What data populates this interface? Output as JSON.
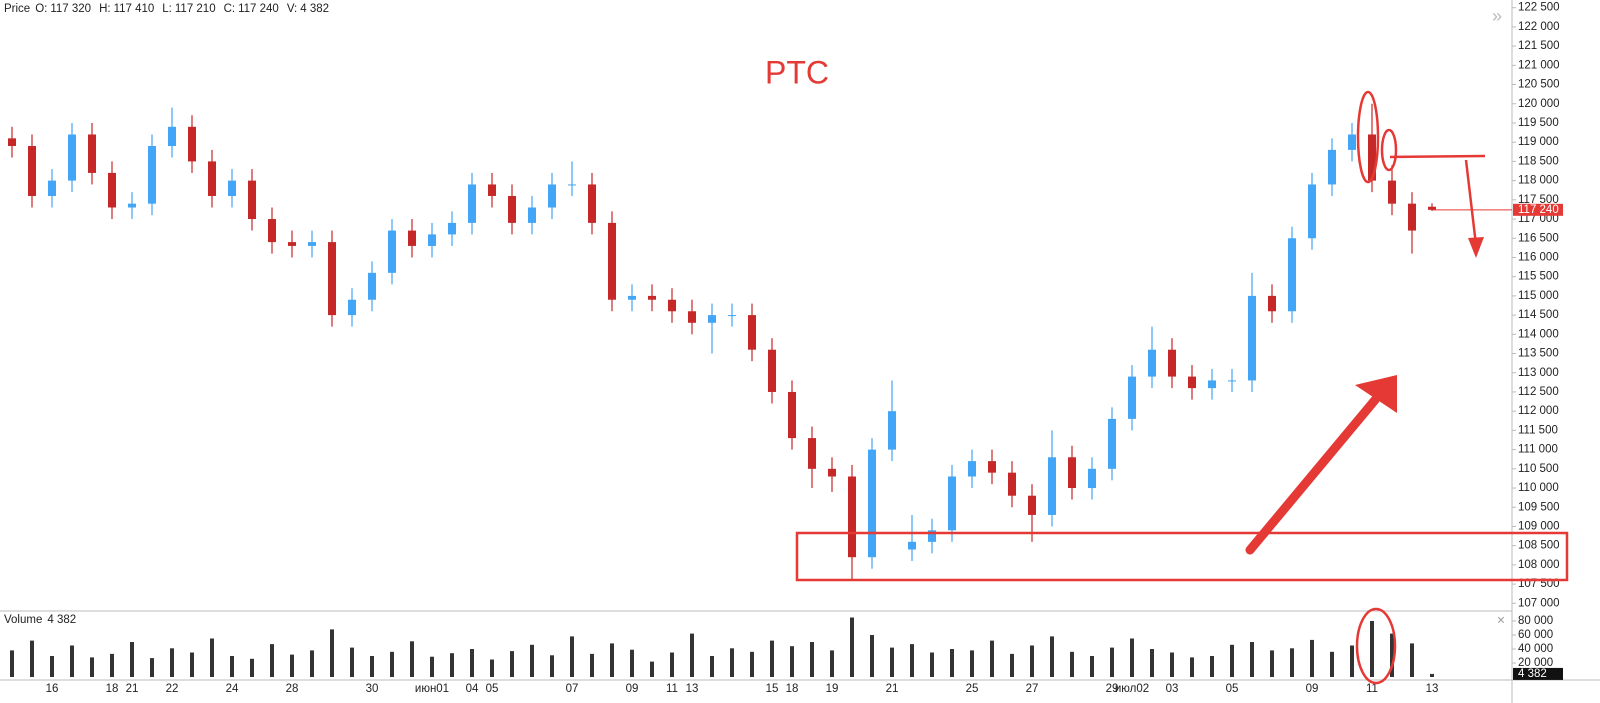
{
  "chart_data": {
    "type": "candlestick",
    "title": "PTC",
    "header": {
      "name": "Price",
      "items": [
        {
          "label": "O:",
          "value": {
            "value": 117320,
            "label": "117 320"
          }
        },
        {
          "label": "H:",
          "value": {
            "value": 117410,
            "label": "117 410"
          }
        },
        {
          "label": "L:",
          "value": {
            "value": 117210,
            "label": "117 210"
          }
        },
        {
          "label": "C:",
          "value": {
            "value": 117240,
            "label": "117 240"
          }
        },
        {
          "label": "V:",
          "value": {
            "value": 4382,
            "label": "4 382"
          }
        }
      ]
    },
    "categories": [
      null,
      null,
      "16",
      null,
      null,
      "18",
      "21",
      null,
      "22",
      null,
      null,
      "24",
      null,
      null,
      "28",
      null,
      null,
      null,
      "30",
      null,
      null,
      "июн01",
      null,
      "04",
      "05",
      null,
      null,
      null,
      "07",
      null,
      null,
      "09",
      null,
      "11",
      "13",
      null,
      null,
      null,
      "15",
      "18",
      null,
      "19",
      null,
      null,
      "21",
      null,
      null,
      null,
      "25",
      null,
      null,
      "27",
      null,
      null,
      null,
      "29",
      "июл02",
      null,
      "03",
      null,
      null,
      "05",
      null,
      null,
      null,
      "09",
      null,
      null,
      "11",
      null,
      null,
      "13"
    ],
    "series": {
      "open": [
        119100,
        118900,
        117600,
        118000,
        119200,
        118200,
        117300,
        117400,
        118900,
        119400,
        118500,
        117600,
        118000,
        117000,
        116400,
        116300,
        116400,
        114500,
        114900,
        115600,
        116700,
        116300,
        116600,
        116900,
        117900,
        117600,
        116900,
        117300,
        117900,
        117900,
        116900,
        114900,
        115000,
        114900,
        114600,
        114300,
        114500,
        114500,
        113600,
        112500,
        111300,
        110500,
        110300,
        108200,
        111000,
        108400,
        108600,
        108900,
        110300,
        110700,
        110400,
        109800,
        109300,
        110800,
        110000,
        110500,
        111800,
        112900,
        113600,
        112900,
        112600,
        112800,
        112800,
        115000,
        114600,
        116500,
        117900,
        118800,
        119200,
        118000,
        117400,
        117320
      ],
      "high": [
        119400,
        119200,
        118300,
        119500,
        119500,
        118500,
        117700,
        119200,
        119900,
        119700,
        118800,
        118300,
        118300,
        117300,
        116700,
        116700,
        116700,
        115200,
        115900,
        117000,
        117000,
        116900,
        117200,
        118200,
        118200,
        117900,
        117600,
        118200,
        118500,
        118200,
        117200,
        115300,
        115300,
        115200,
        114900,
        114800,
        114800,
        114800,
        113900,
        112800,
        111600,
        110800,
        110600,
        111300,
        112800,
        109300,
        109200,
        110600,
        111000,
        111000,
        110700,
        110100,
        111500,
        111100,
        110800,
        112100,
        113200,
        114200,
        113900,
        113200,
        113100,
        113100,
        115600,
        115300,
        116800,
        118200,
        119100,
        119500,
        120000,
        118400,
        117700,
        117410
      ],
      "low": [
        118600,
        117300,
        117300,
        117700,
        117900,
        117000,
        117000,
        117100,
        118600,
        118200,
        117300,
        117300,
        116700,
        116100,
        116000,
        116000,
        114200,
        114200,
        114600,
        115300,
        116000,
        116000,
        116300,
        116600,
        117300,
        116600,
        116600,
        117000,
        117600,
        116600,
        114600,
        114600,
        114600,
        114300,
        114000,
        113500,
        114200,
        113300,
        112200,
        111000,
        110000,
        109900,
        107600,
        107900,
        110700,
        108100,
        108300,
        108600,
        110000,
        110100,
        109500,
        108600,
        109000,
        109700,
        109700,
        110200,
        111500,
        112600,
        112600,
        112300,
        112300,
        112500,
        112500,
        114300,
        114300,
        116200,
        117600,
        118500,
        117700,
        117100,
        116100,
        117210
      ],
      "close": [
        118900,
        117600,
        118000,
        119200,
        118200,
        117300,
        117400,
        118900,
        119400,
        118500,
        117600,
        118000,
        117000,
        116400,
        116300,
        116400,
        114500,
        114900,
        115600,
        116700,
        116300,
        116600,
        116900,
        117900,
        117600,
        116900,
        117300,
        117900,
        117900,
        116900,
        114900,
        115000,
        114900,
        114600,
        114300,
        114500,
        114500,
        113600,
        112500,
        111300,
        110500,
        110300,
        108200,
        111000,
        112000,
        108600,
        108900,
        110300,
        110700,
        110400,
        109800,
        109300,
        110800,
        110000,
        110500,
        111800,
        112900,
        113600,
        112900,
        112600,
        112800,
        112800,
        115000,
        114600,
        116500,
        117900,
        118800,
        119200,
        118000,
        117400,
        116700,
        117240
      ]
    },
    "up_color": "#42a5f5",
    "down_color": "#c62828",
    "ylim": [
      106800,
      122700
    ],
    "yticks": [
      {
        "value": 107000,
        "label": "107 000"
      },
      {
        "value": 107500,
        "label": "107 500"
      },
      {
        "value": 108000,
        "label": "108 000"
      },
      {
        "value": 108500,
        "label": "108 500"
      },
      {
        "value": 109000,
        "label": "109 000"
      },
      {
        "value": 109500,
        "label": "109 500"
      },
      {
        "value": 110000,
        "label": "110 000"
      },
      {
        "value": 110500,
        "label": "110 500"
      },
      {
        "value": 111000,
        "label": "111 000"
      },
      {
        "value": 111500,
        "label": "111 500"
      },
      {
        "value": 112000,
        "label": "112 000"
      },
      {
        "value": 112500,
        "label": "112 500"
      },
      {
        "value": 113000,
        "label": "113 000"
      },
      {
        "value": 113500,
        "label": "113 500"
      },
      {
        "value": 114000,
        "label": "114 000"
      },
      {
        "value": 114500,
        "label": "114 500"
      },
      {
        "value": 115000,
        "label": "115 000"
      },
      {
        "value": 115500,
        "label": "115 500"
      },
      {
        "value": 116000,
        "label": "116 000"
      },
      {
        "value": 116500,
        "label": "116 500"
      },
      {
        "value": 117000,
        "label": "117 000"
      },
      {
        "value": 117500,
        "label": "117 500"
      },
      {
        "value": 118000,
        "label": "118 000"
      },
      {
        "value": 118500,
        "label": "118 500"
      },
      {
        "value": 119000,
        "label": "119 000"
      },
      {
        "value": 119500,
        "label": "119 500"
      },
      {
        "value": 120000,
        "label": "120 000"
      },
      {
        "value": 120500,
        "label": "120 500"
      },
      {
        "value": 121000,
        "label": "121 000"
      },
      {
        "value": 121500,
        "label": "121 500"
      },
      {
        "value": 122000,
        "label": "122 000"
      },
      {
        "value": 122500,
        "label": "122 500"
      }
    ],
    "last_price": {
      "value": 117240,
      "label": "117 240"
    },
    "volume": {
      "name": "Volume",
      "last": {
        "value": 4382,
        "label": "4 382"
      },
      "color": "#333333",
      "values": [
        38000,
        52000,
        30000,
        45000,
        28000,
        33000,
        50000,
        27000,
        41000,
        35000,
        55000,
        30000,
        26000,
        47000,
        32000,
        38000,
        68000,
        42000,
        30000,
        36000,
        51000,
        29000,
        34000,
        40000,
        25000,
        37000,
        46000,
        31000,
        58000,
        33000,
        48000,
        39000,
        22000,
        35000,
        62000,
        30000,
        41000,
        36000,
        52000,
        44000,
        50000,
        38000,
        85000,
        60000,
        42000,
        47000,
        35000,
        40000,
        38000,
        52000,
        33000,
        45000,
        58000,
        36000,
        30000,
        42000,
        55000,
        40000,
        35000,
        28000,
        30000,
        46000,
        50000,
        38000,
        41000,
        53000,
        36000,
        45000,
        80000,
        62000,
        48000,
        4382
      ],
      "ylim": [
        0,
        90000
      ],
      "yticks": [
        {
          "value": 20000,
          "label": "20 000"
        },
        {
          "value": 40000,
          "label": "40 000"
        },
        {
          "value": 60000,
          "label": "60 000"
        },
        {
          "value": 80000,
          "label": "80 000"
        }
      ]
    }
  }
}
